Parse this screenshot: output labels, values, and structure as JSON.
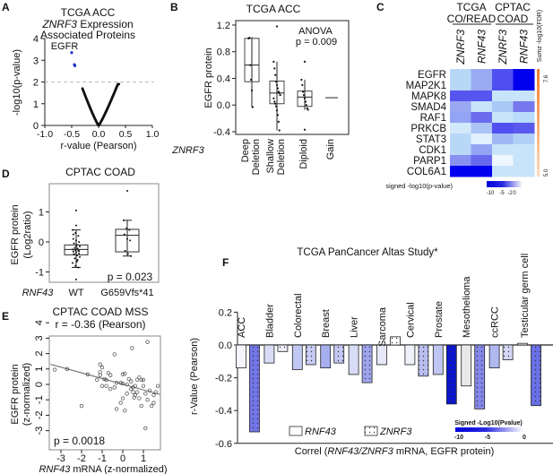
{
  "panel_letters": [
    "A",
    "B",
    "C",
    "D",
    "E",
    "F"
  ],
  "chart_data": [
    {
      "panel": "A",
      "type": "scatter",
      "title": [
        "TCGA ACC",
        "ZNRF3 Expression",
        "Associated Proteins"
      ],
      "title_italic_word": "ZNRF3",
      "xlabel": "r-value (Pearson)",
      "ylabel": "-log10(p-value)",
      "xlim": [
        -1.0,
        1.0
      ],
      "ylim": [
        0,
        4
      ],
      "xticks": [
        "-1.0",
        "-0.5",
        "0.0",
        "0.5",
        "1.0"
      ],
      "yticks": [
        "0",
        "1",
        "2",
        "3",
        "4"
      ],
      "threshold": 2,
      "annotation": "EGFR",
      "highlight_points": [
        [
          -0.5,
          3.35
        ],
        [
          -0.45,
          2.8
        ],
        [
          -0.44,
          2.75
        ]
      ],
      "highlight_color": "#2233cc",
      "points_r_range": [
        -0.3,
        0.38
      ]
    },
    {
      "panel": "B",
      "type": "box",
      "title": "TCGA ACC",
      "ylabel": "EGFR protein",
      "xlabel_prefix": "ZNRF3",
      "ylim": [
        -0.4,
        1.2
      ],
      "yticks": [
        "-0.4",
        "0.0",
        "0.4",
        "0.8",
        "1.2"
      ],
      "annotation": [
        "ANOVA",
        "p = 0.009"
      ],
      "groups": [
        {
          "name": [
            "Deep",
            "Deletion"
          ],
          "q1": 0.35,
          "median": 0.6,
          "q3": 1.0,
          "min": -0.03,
          "max": 1.02,
          "points": [
            1.0,
            1.01,
            0.6,
            0.38,
            0.22,
            -0.03
          ],
          "outliers": []
        },
        {
          "name": [
            "Shallow",
            "Deletion"
          ],
          "q1": 0.02,
          "median": 0.18,
          "q3": 0.36,
          "min": -0.38,
          "max": 0.65,
          "points": [
            0.65,
            0.55,
            0.45,
            0.35,
            0.3,
            0.25,
            0.2,
            0.18,
            0.15,
            0.1,
            0.05,
            0.02,
            -0.02,
            -0.08,
            -0.15,
            -0.25,
            -0.38
          ],
          "outliers": [
            1.18
          ]
        },
        {
          "name": [
            "Diploid"
          ],
          "q1": -0.02,
          "median": 0.12,
          "q3": 0.21,
          "min": -0.07,
          "max": 0.38,
          "points": [
            0.38,
            0.3,
            0.2,
            0.15,
            0.1,
            0.05,
            0.0,
            -0.05,
            -0.07
          ],
          "outliers": [
            0.65,
            -0.37
          ]
        },
        {
          "name": [
            "Gain"
          ],
          "q1": 0.11,
          "median": 0.11,
          "q3": 0.11,
          "min": 0.11,
          "max": 0.11,
          "points": [],
          "outliers": []
        }
      ]
    },
    {
      "panel": "C",
      "type": "heatmap",
      "group_headers": [
        [
          "TCGA",
          "CO/READ"
        ],
        [
          "CPTAC",
          "COAD"
        ]
      ],
      "columns": [
        "ZNRF3",
        "RNF43",
        "ZNRF3",
        "RNF43"
      ],
      "rows": [
        "EGFR",
        "MAP2K1",
        "MAPK8",
        "SMAD4",
        "RAF1",
        "PRKCB",
        "STAT3",
        "CDK1",
        "PARP1",
        "COL6A1"
      ],
      "cell_colors": [
        [
          "#b8d8f8",
          "#9aaaf2",
          "#4f4ff0",
          "#0000ee"
        ],
        [
          "#b8d8f8",
          "#9aaaf2",
          "#4f4ff0",
          "#0000ee"
        ],
        [
          "#5656ee",
          "#5656ee",
          "#c8e4fa",
          "#c8e4fa"
        ],
        [
          "#9aa8f4",
          "#c8e4fa",
          "#a8c8f5",
          "#7777ee"
        ],
        [
          "#94a4f4",
          "#6b6bee",
          "#c8e4fa",
          "#b8dcfa"
        ],
        [
          "#d2e9fb",
          "#aac4f5",
          "#5050f0",
          "#5a5aef"
        ],
        [
          "#b8d8f8",
          "#e2f1fd",
          "#a0b8f5",
          "#b0d0f8"
        ],
        [
          "#b8d8f8",
          "#94a4f4",
          "#c8e4fa",
          "#c8e4fa"
        ],
        [
          "#8890f0",
          "#6868ee",
          "#eef6fe",
          "#c8e4fa"
        ],
        [
          "#0000ee",
          "#0000ee",
          "#c8e4fa",
          "#c8e4fa"
        ]
      ],
      "side_bar_label": "Sumz -log10(FDR)",
      "side_bar_ticks": [
        "7.6",
        "5.0"
      ],
      "side_bar_colors": [
        "#f07a2a",
        "#fcdcc0"
      ],
      "legend_label": "signed -log10(p-value)",
      "legend_ticks": [
        "-10",
        "-5",
        "-2",
        "0"
      ],
      "legend_colors": [
        "#0000dd",
        "#ffffff"
      ]
    },
    {
      "panel": "D",
      "type": "box",
      "title": "CPTAC COAD",
      "ylabel": [
        "EGFR protein",
        "(Log2ratio)"
      ],
      "xlabel_prefix": "RNF43",
      "yticks": [
        "-1",
        "0",
        "1"
      ],
      "annotation": "p = 0.023",
      "groups": [
        {
          "name": [
            "WT"
          ],
          "q1": -0.43,
          "median": -0.25,
          "q3": -0.1,
          "min": -0.85,
          "max": 0.4,
          "points": [
            0.4,
            0.3,
            0.2,
            0.1,
            0.05,
            0.0,
            -0.05,
            -0.1,
            -0.15,
            -0.2,
            -0.22,
            -0.25,
            -0.28,
            -0.3,
            -0.32,
            -0.35,
            -0.38,
            -0.4,
            -0.45,
            -0.5,
            -0.55,
            -0.6,
            -0.7,
            -0.8,
            -0.85,
            0.25,
            -0.15,
            -0.3,
            -0.42,
            -0.65
          ],
          "outliers": [
            1.05,
            0.55,
            -1.25
          ]
        },
        {
          "name": [
            "G659Vfs*41"
          ],
          "q1": -0.33,
          "median": 0.22,
          "q3": 0.42,
          "min": -0.47,
          "max": 0.72,
          "points": [
            0.72,
            0.45,
            0.4,
            0.25,
            0.1,
            0.05,
            -0.3,
            -0.4,
            -0.47
          ],
          "outliers": [
            1.7
          ]
        }
      ]
    },
    {
      "panel": "E",
      "type": "scatter",
      "title": [
        "CPTAC COAD MSS",
        "r = -0.36 (Pearson)"
      ],
      "xlabel_italic": "RNF43",
      "xlabel": " mRNA (z-normalized)",
      "ylabel": [
        "EGFR protein",
        "(z-normalized)"
      ],
      "xticks": [
        "-3",
        "-2",
        "-1",
        "0",
        "1"
      ],
      "yticks": [
        "-3",
        "-2",
        "-1",
        "0",
        "1",
        "2",
        "3",
        "4"
      ],
      "annotation": "p = 0.0018",
      "fit_line": [
        [
          -3.5,
          1.3
        ],
        [
          1.8,
          -0.65
        ]
      ],
      "points": [
        [
          -3.3,
          0.95
        ],
        [
          -2.7,
          1.0
        ],
        [
          -1.7,
          0.65
        ],
        [
          -2.0,
          -1.4
        ],
        [
          -1.1,
          1.3
        ],
        [
          -1.0,
          1.1
        ],
        [
          -1.1,
          0.8
        ],
        [
          -1.1,
          0.6
        ],
        [
          -1.25,
          0.3
        ],
        [
          -0.9,
          0.35
        ],
        [
          -0.8,
          0.3
        ],
        [
          -0.7,
          0.75
        ],
        [
          -0.6,
          0.6
        ],
        [
          -1.0,
          -0.1
        ],
        [
          -0.8,
          -0.1
        ],
        [
          -0.6,
          -0.3
        ],
        [
          -0.4,
          -0.2
        ],
        [
          -0.7,
          3.85
        ],
        [
          -0.4,
          1.95
        ],
        [
          0.45,
          2.35
        ],
        [
          1.2,
          2.75
        ],
        [
          -0.3,
          0.1
        ],
        [
          -0.1,
          0.1
        ],
        [
          0.0,
          0.05
        ],
        [
          0.0,
          0.65
        ],
        [
          0.1,
          0.7
        ],
        [
          0.2,
          0.0
        ],
        [
          0.3,
          0.35
        ],
        [
          0.4,
          0.2
        ],
        [
          0.5,
          -0.2
        ],
        [
          0.5,
          -0.5
        ],
        [
          0.6,
          -0.7
        ],
        [
          0.55,
          -0.85
        ],
        [
          0.7,
          -0.5
        ],
        [
          0.7,
          0.3
        ],
        [
          0.8,
          0.45
        ],
        [
          0.9,
          0.3
        ],
        [
          0.8,
          -0.9
        ],
        [
          0.9,
          -1.4
        ],
        [
          1.0,
          -0.1
        ],
        [
          1.0,
          0.3
        ],
        [
          1.1,
          -0.6
        ],
        [
          1.2,
          -1.0
        ],
        [
          1.3,
          -0.4
        ],
        [
          1.4,
          -1.4
        ],
        [
          1.5,
          -1.2
        ],
        [
          1.5,
          -0.7
        ],
        [
          1.6,
          -0.5
        ],
        [
          1.7,
          -0.1
        ],
        [
          0.2,
          -0.6
        ],
        [
          0.0,
          -0.9
        ],
        [
          -0.3,
          -1.6
        ],
        [
          0.1,
          -1.7
        ],
        [
          -0.1,
          -1.2
        ],
        [
          1.1,
          -2.85
        ],
        [
          0.4,
          -0.3
        ],
        [
          0.6,
          -0.1
        ]
      ],
      "xlim": [
        -3.6,
        1.85
      ],
      "ylim": [
        -3,
        4
      ]
    },
    {
      "panel": "F",
      "type": "bar",
      "title": "TCGA PanCancer Altas Study*",
      "ylabel": "r-Value (Pearson)",
      "xlabel_parts": [
        "Correl (",
        "RNF43/ZNRF3",
        " mRNA, EGFR protein)"
      ],
      "ylim": [
        -0.6,
        0.2
      ],
      "yticks": [
        "-0.6",
        "-0.4",
        "-0.2",
        "0.0",
        "0.2"
      ],
      "categories": [
        "ACC",
        "Bladder",
        "Colorectal",
        "Breast",
        "Liver",
        "Sarcoma",
        "Cervical",
        "Prostate",
        "Mesothelioma",
        "ccRCC",
        "Testicular germ cell"
      ],
      "series": [
        {
          "name": "RNF43",
          "pattern": "solid",
          "values": [
            -0.14,
            -0.11,
            -0.15,
            -0.14,
            -0.18,
            -0.12,
            -0.12,
            -0.18,
            -0.25,
            -0.14,
            0.01
          ],
          "colors": [
            "#f4f4fc",
            "#d8dcf6",
            "#c0c8f4",
            "#a6aef0",
            "#d8dcf6",
            "#e6e8f8",
            "#eef0fa",
            "#c0c6f2",
            "#e8e8e8",
            "#b0b8f0",
            "#f8f8fc"
          ]
        },
        {
          "name": "ZNRF3",
          "pattern": "dotted",
          "values": [
            -0.53,
            -0.04,
            -0.12,
            -0.11,
            -0.23,
            0.05,
            -0.19,
            -0.36,
            -0.39,
            -0.09,
            -0.37
          ],
          "colors": [
            "#7276e8",
            "#eeeefa",
            "#c8ccf4",
            "#c4c8f4",
            "#9ea4ee",
            "#ffffff",
            "#b8bef2",
            "#0a14d0",
            "#8488ea",
            "#d4d8f6",
            "#6a70e6"
          ]
        }
      ],
      "legend": [
        "RNF43",
        "ZNRF3"
      ],
      "colorbar_label": "Signed -Log10(Pvalue)",
      "colorbar_ticks": [
        "-10",
        "-5",
        "0"
      ],
      "colorbar_colors": [
        "#0000dd",
        "#ffffff"
      ]
    }
  ]
}
